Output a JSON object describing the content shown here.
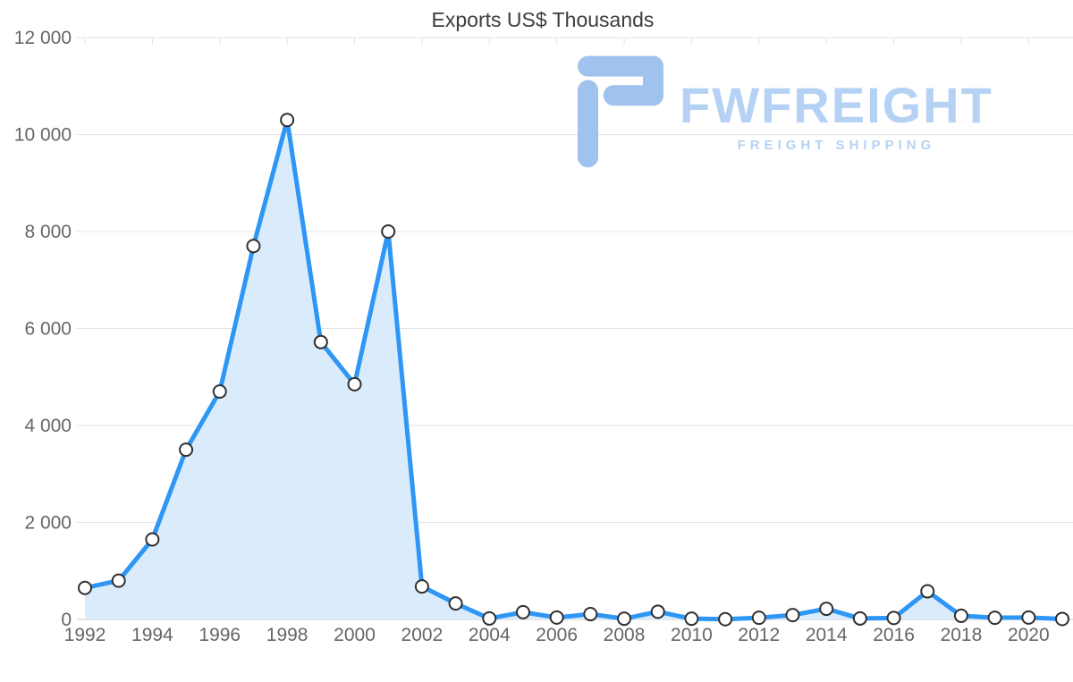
{
  "chart_data": {
    "type": "area",
    "title": "Exports US$ Thousands",
    "series_name": "Exports US$ Thousands",
    "x": [
      1992,
      1993,
      1994,
      1995,
      1996,
      1997,
      1998,
      1999,
      2000,
      2001,
      2002,
      2003,
      2004,
      2005,
      2006,
      2007,
      2008,
      2009,
      2010,
      2011,
      2012,
      2013,
      2014,
      2015,
      2016,
      2017,
      2018,
      2019,
      2020,
      2021
    ],
    "values": [
      650,
      800,
      1650,
      3500,
      4700,
      7700,
      10300,
      5720,
      4850,
      8000,
      680,
      330,
      20,
      150,
      40,
      110,
      15,
      160,
      15,
      5,
      35,
      90,
      220,
      20,
      30,
      580,
      75,
      35,
      40,
      10
    ],
    "xlim": [
      1992,
      2021
    ],
    "ylim": [
      0,
      12000
    ],
    "y_ticks": [
      0,
      2000,
      4000,
      6000,
      8000,
      10000,
      12000
    ],
    "y_tick_labels": [
      "0",
      "2 000",
      "4 000",
      "6 000",
      "8 000",
      "10 000",
      "12 000"
    ],
    "x_tick_years": [
      1992,
      1994,
      1996,
      1998,
      2000,
      2002,
      2004,
      2006,
      2008,
      2010,
      2012,
      2014,
      2016,
      2018,
      2020
    ],
    "x_tick_labels": [
      "1992",
      "1994",
      "1996",
      "1998",
      "2000",
      "2002",
      "2004",
      "2006",
      "2008",
      "2010",
      "2012",
      "2014",
      "2016",
      "2018",
      "2020"
    ],
    "grid": "horizontal",
    "legend": "none",
    "line_color": "#2e96f5",
    "fill_color": "#daecfc",
    "marker_fill": "#ffffff",
    "marker_stroke": "#2f2f2f",
    "gridline_color": "#e4e4e4",
    "axis_line_color": "#c9c9c9"
  },
  "watermark": {
    "brand": "FWFREIGHT",
    "tagline": "FREIGHT SHIPPING",
    "color": "#b5d2f4",
    "logo_color": "#9fc2ee"
  }
}
